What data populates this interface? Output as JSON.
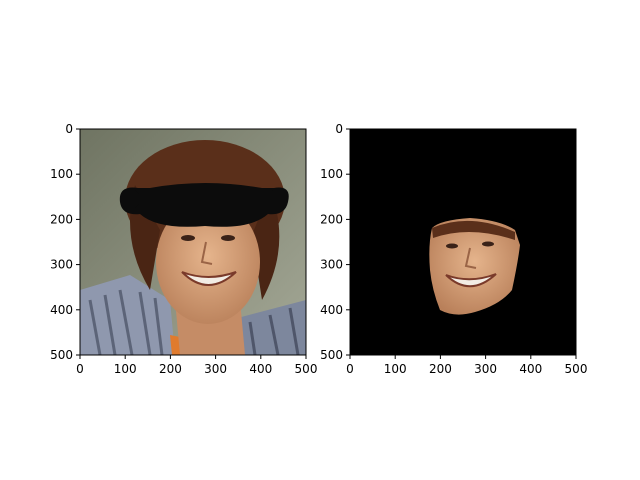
{
  "figure": {
    "background": "#ffffff",
    "panels": [
      {
        "id": "left",
        "content": "face-with-mustache-overlay",
        "x_ticks": [
          "0",
          "100",
          "200",
          "300",
          "400",
          "500"
        ],
        "y_ticks": [
          "0",
          "100",
          "200",
          "300",
          "400",
          "500"
        ],
        "xlim": [
          0,
          500
        ],
        "ylim": [
          500,
          0
        ]
      },
      {
        "id": "right",
        "content": "masked-face-on-black",
        "x_ticks": [
          "0",
          "100",
          "200",
          "300",
          "400",
          "500"
        ],
        "y_ticks": [
          "0",
          "100",
          "200",
          "300",
          "400",
          "500"
        ],
        "xlim": [
          0,
          500
        ],
        "ylim": [
          500,
          0
        ]
      }
    ]
  },
  "colors": {
    "left_bg": "#8a8f7e",
    "hair": "#5a2f1a",
    "skin": "#d8a27a",
    "mustache": "#0c0c0c",
    "shirt": "#8a93a8",
    "mask_bg": "#000000"
  }
}
